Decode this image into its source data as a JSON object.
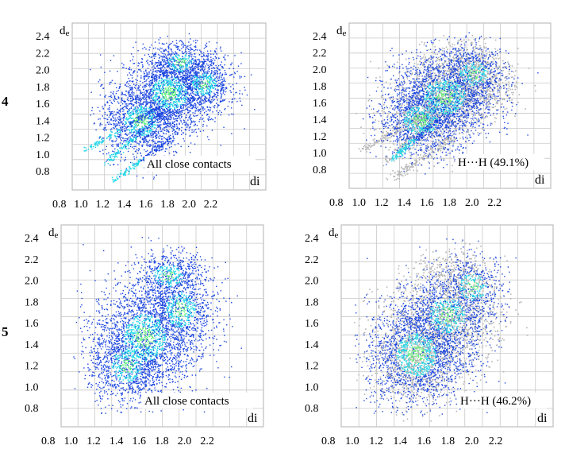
{
  "row_labels": [
    "4",
    "5"
  ],
  "chart_data": [
    {
      "type": "scatter",
      "row": "4",
      "ylabel_main": "d",
      "ylabel_sub": "e",
      "xlabel": "di",
      "annotation": "All close contacts",
      "xticks": [
        "0.8",
        "1.0",
        "1.2",
        "1.4",
        "1.6",
        "1.8",
        "2.0",
        "2.2"
      ],
      "yticks": [
        "2.4",
        "2.2",
        "2.0",
        "1.8",
        "1.6",
        "1.4",
        "1.2",
        "1.0",
        "0.8"
      ],
      "xlim": [
        0.7,
        2.4
      ],
      "ylim": [
        0.7,
        2.5
      ],
      "grid": true,
      "full_fingerprint": true,
      "series": [
        {
          "values": [
            {
              "x": 1.55,
              "y": 1.75,
              "sx": 0.2,
              "sy": 0.22,
              "n": 1700
            },
            {
              "x": 1.3,
              "y": 1.45,
              "sx": 0.18,
              "sy": 0.2,
              "n": 1200
            },
            {
              "x": 1.85,
              "y": 1.85,
              "sx": 0.14,
              "sy": 0.16,
              "n": 700
            },
            {
              "x": 1.65,
              "y": 2.08,
              "sx": 0.14,
              "sy": 0.12,
              "n": 450
            }
          ],
          "spikes": [
            {
              "from": [
                0.8,
                1.12
              ],
              "to": [
                1.45,
                1.6
              ],
              "n": 160
            },
            {
              "from": [
                1.0,
                1.0
              ],
              "to": [
                1.5,
                1.55
              ],
              "n": 160
            },
            {
              "from": [
                1.05,
                0.8
              ],
              "to": [
                1.55,
                1.25
              ],
              "n": 160
            }
          ]
        }
      ]
    },
    {
      "type": "scatter",
      "row": "4",
      "ylabel_main": "d",
      "ylabel_sub": "e",
      "xlabel": "di",
      "annotation": "H···H (49.1%)",
      "xticks": [
        "0.8",
        "1.0",
        "1.2",
        "1.4",
        "1.6",
        "1.8",
        "2.0",
        "2.2"
      ],
      "yticks": [
        "2.4",
        "2.2",
        "2.0",
        "1.8",
        "1.6",
        "1.4",
        "1.2",
        "1.0",
        "0.8"
      ],
      "xlim": [
        0.7,
        2.4
      ],
      "ylim": [
        0.7,
        2.5
      ],
      "grid": true,
      "full_fingerprint": false,
      "series": [
        {
          "values": [
            {
              "x": 1.5,
              "y": 1.7,
              "sx": 0.22,
              "sy": 0.24,
              "n": 1600
            },
            {
              "x": 1.3,
              "y": 1.45,
              "sx": 0.18,
              "sy": 0.2,
              "n": 900
            },
            {
              "x": 1.75,
              "y": 1.95,
              "sx": 0.15,
              "sy": 0.16,
              "n": 500
            }
          ],
          "spikes": [
            {
              "from": [
                1.05,
                1.02
              ],
              "to": [
                1.45,
                1.45
              ],
              "n": 160
            }
          ]
        }
      ]
    },
    {
      "type": "scatter",
      "row": "5",
      "ylabel_main": "d",
      "ylabel_sub": "e",
      "xlabel": "di",
      "annotation": "All close contacts",
      "xticks": [
        "0.8",
        "1.0",
        "1.2",
        "1.4",
        "1.6",
        "1.8",
        "2.0",
        "2.2"
      ],
      "yticks": [
        "2.4",
        "2.2",
        "2.0",
        "1.8",
        "1.6",
        "1.4",
        "1.2",
        "1.0",
        "0.8"
      ],
      "xlim": [
        0.7,
        2.4
      ],
      "ylim": [
        0.7,
        2.5
      ],
      "grid": true,
      "full_fingerprint": true,
      "series": [
        {
          "values": [
            {
              "x": 1.4,
              "y": 1.5,
              "sx": 0.22,
              "sy": 0.26,
              "n": 2000
            },
            {
              "x": 1.25,
              "y": 1.25,
              "sx": 0.16,
              "sy": 0.18,
              "n": 800
            },
            {
              "x": 1.7,
              "y": 1.75,
              "sx": 0.16,
              "sy": 0.2,
              "n": 900
            },
            {
              "x": 1.6,
              "y": 2.05,
              "sx": 0.15,
              "sy": 0.12,
              "n": 500
            }
          ],
          "spikes": []
        }
      ]
    },
    {
      "type": "scatter",
      "row": "5",
      "ylabel_main": "d",
      "ylabel_sub": "e",
      "xlabel": "di",
      "annotation": "H···H (46.2%)",
      "xticks": [
        "0.8",
        "1.0",
        "1.2",
        "1.4",
        "1.6",
        "1.8",
        "2.0",
        "2.2"
      ],
      "yticks": [
        "2.4",
        "2.2",
        "2.0",
        "1.8",
        "1.6",
        "1.4",
        "1.2",
        "1.0",
        "0.8"
      ],
      "xlim": [
        0.7,
        2.4
      ],
      "ylim": [
        0.7,
        2.5
      ],
      "grid": true,
      "full_fingerprint": false,
      "series": [
        {
          "values": [
            {
              "x": 1.3,
              "y": 1.35,
              "sx": 0.2,
              "sy": 0.24,
              "n": 1700
            },
            {
              "x": 1.55,
              "y": 1.7,
              "sx": 0.18,
              "sy": 0.2,
              "n": 900
            },
            {
              "x": 1.75,
              "y": 1.95,
              "sx": 0.14,
              "sy": 0.15,
              "n": 400
            }
          ],
          "spikes": []
        }
      ]
    }
  ],
  "colors": {
    "grid": "#c8c8c8",
    "gray_points": "#b4b4b4",
    "blue_points": "#1a45e0",
    "cyan_points": "#22d8e8",
    "green_points": "#5ef07a"
  }
}
